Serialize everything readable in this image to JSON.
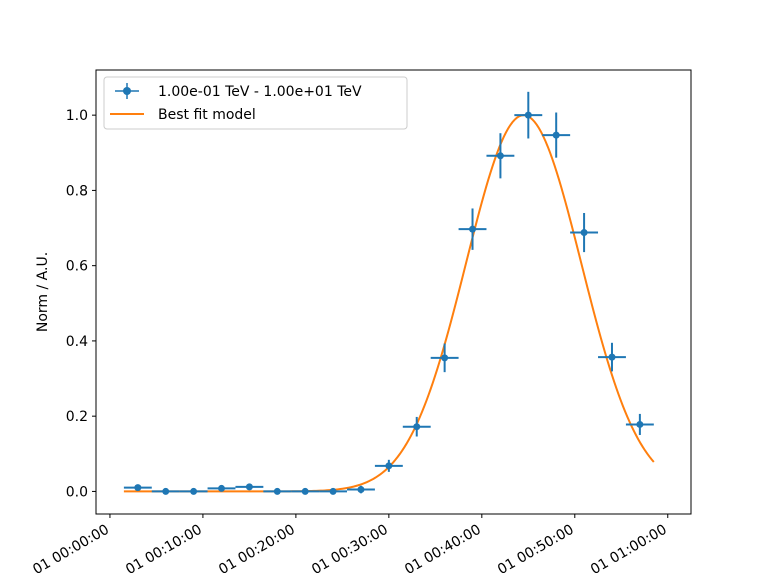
{
  "chart_data": {
    "type": "scatter",
    "title": "",
    "xlabel": "",
    "ylabel": "Norm / A.U.",
    "x_unit": "minutes",
    "x_ticks": [
      {
        "value": 0,
        "label": "01 00:00:00"
      },
      {
        "value": 10,
        "label": "01 00:10:00"
      },
      {
        "value": 20,
        "label": "01 00:20:00"
      },
      {
        "value": 30,
        "label": "01 00:30:00"
      },
      {
        "value": 40,
        "label": "01 00:40:00"
      },
      {
        "value": 50,
        "label": "01 00:50:00"
      },
      {
        "value": 60,
        "label": "01 01:00:00"
      }
    ],
    "y_ticks": [
      "0.0",
      "0.2",
      "0.4",
      "0.6",
      "0.8",
      "1.0"
    ],
    "xlim": [
      -1.5,
      62.5
    ],
    "ylim": [
      -0.06,
      1.12
    ],
    "grid": false,
    "legend_position": "top-left",
    "series": [
      {
        "name": "1.00e-01 TeV - 1.00e+01 TeV",
        "kind": "errorbar",
        "color": "#1f77b4",
        "x": [
          3,
          6,
          9,
          12,
          15,
          18,
          21,
          24,
          27,
          30,
          33,
          36,
          39,
          42,
          45,
          48,
          51,
          54,
          57
        ],
        "xerr": 1.5,
        "y": [
          0.01,
          0.0,
          0.0,
          0.008,
          0.012,
          0.0,
          0.0,
          0.0,
          0.005,
          0.068,
          0.172,
          0.355,
          0.697,
          0.892,
          1.0,
          0.947,
          0.688,
          0.357,
          0.178
        ],
        "yerr": [
          0.005,
          0.003,
          0.003,
          0.008,
          0.007,
          0.003,
          0.003,
          0.003,
          0.01,
          0.016,
          0.026,
          0.038,
          0.055,
          0.06,
          0.062,
          0.06,
          0.052,
          0.038,
          0.028
        ]
      },
      {
        "name": "Best fit model",
        "kind": "line",
        "color": "#ff7f0e",
        "model": {
          "form": "gaussian",
          "amplitude": 1.0,
          "mean": 44.5,
          "sigma": 6.2,
          "x_start": 1.5,
          "x_end": 58.5
        }
      }
    ]
  }
}
